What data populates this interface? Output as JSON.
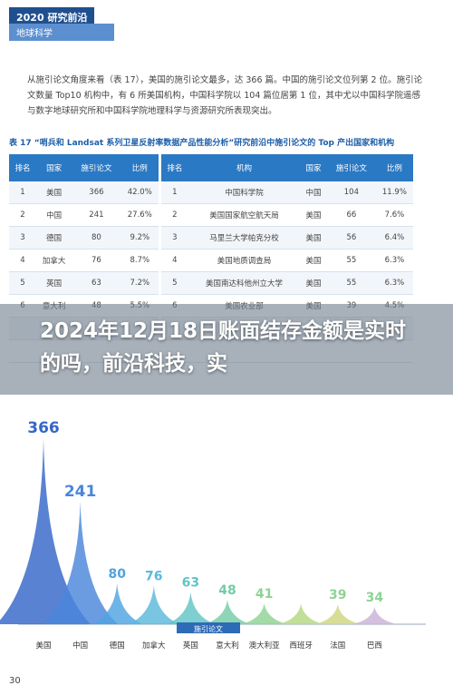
{
  "document": {
    "badge": "2020 研究前沿",
    "subject": "地球科学",
    "paragraph": "从施引论文角度来看（表 17），美国的施引论文最多，达 366 篇。中国的施引论文位列第 2 位。施引论文数量 Top10 机构中，有 6 所美国机构，中国科学院以 104 篇位居第 1 位，其中尤以中国科学院遥感与数字地球研究所和中国科学院地理科学与资源研究所表现突出。",
    "caption": "表 17 “哨兵和 Landsat 系列卫星反射率数据产品性能分析”研究前沿中施引论文的 Top 产出国家和机构",
    "table_left": {
      "headers": [
        "排名",
        "国家",
        "施引论文",
        "比例"
      ],
      "rows": [
        [
          "1",
          "美国",
          "366",
          "42.0%"
        ],
        [
          "2",
          "中国",
          "241",
          "27.6%"
        ],
        [
          "3",
          "德国",
          "80",
          "9.2%"
        ],
        [
          "4",
          "加拿大",
          "76",
          "8.7%"
        ],
        [
          "5",
          "英国",
          "63",
          "7.2%"
        ],
        [
          "6",
          "意大利",
          "48",
          "5.5%"
        ]
      ]
    },
    "table_right": {
      "headers": [
        "排名",
        "机构",
        "国家",
        "施引论文",
        "比例"
      ],
      "rows": [
        [
          "1",
          "中国科学院",
          "中国",
          "104",
          "11.9%"
        ],
        [
          "2",
          "美国国家航空航天局",
          "美国",
          "66",
          "7.6%"
        ],
        [
          "3",
          "马里兰大学帕克分校",
          "美国",
          "56",
          "6.4%"
        ],
        [
          "4",
          "美国地质调查局",
          "美国",
          "55",
          "6.3%"
        ],
        [
          "5",
          "美国南达科他州立大学",
          "美国",
          "55",
          "6.3%"
        ],
        [
          "6",
          "美国农业部",
          "美国",
          "39",
          "4.5%"
        ]
      ]
    },
    "overlay_title": "2024年12月18日账面结存金额是实时的吗，前沿科技，实",
    "page_number": "30"
  },
  "chart_data": {
    "type": "cone",
    "x_label": "施引论文",
    "categories": [
      "美国",
      "中国",
      "德国",
      "加拿大",
      "英国",
      "意大利",
      "澳大利亚",
      "西班牙",
      "法国",
      "巴西"
    ],
    "values": [
      366,
      241,
      80,
      76,
      63,
      48,
      41,
      40,
      39,
      34
    ],
    "value_labels": [
      "366",
      "241",
      "80",
      "76",
      "63",
      "48",
      "41",
      null,
      "39",
      "34"
    ],
    "colors": [
      "#3566c8",
      "#4a86dc",
      "#4fa3e0",
      "#5bb8dc",
      "#62c4c6",
      "#74cca6",
      "#8ed394",
      "#b3d883",
      "#cfd67f",
      "#c9b2d8"
    ]
  }
}
